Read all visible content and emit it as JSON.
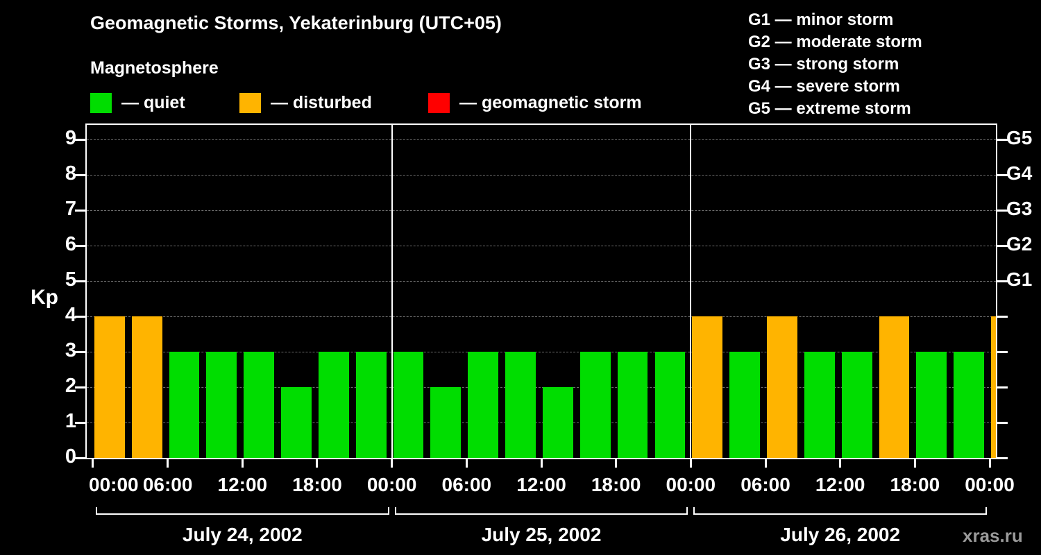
{
  "title": "Geomagnetic Storms, Yekaterinburg (UTC+05)",
  "subtitle": "Magnetosphere",
  "legend": [
    {
      "name": "quiet",
      "label": "— quiet",
      "color": "#00dd00"
    },
    {
      "name": "disturbed",
      "label": "— disturbed",
      "color": "#ffb400"
    },
    {
      "name": "storm",
      "label": "— geomagnetic storm",
      "color": "#ff0000"
    }
  ],
  "storm_scale": [
    {
      "label": "G1 — minor storm"
    },
    {
      "label": "G2 — moderate storm"
    },
    {
      "label": "G3 — strong storm"
    },
    {
      "label": "G4 — severe storm"
    },
    {
      "label": "G5 — extreme storm"
    }
  ],
  "watermark": "xras.ru",
  "chart_data": {
    "type": "bar",
    "title": "Geomagnetic Storms, Yekaterinburg (UTC+05)",
    "ylabel": "Kp",
    "ylim": [
      0,
      9
    ],
    "yticks": [
      0,
      1,
      2,
      3,
      4,
      5,
      6,
      7,
      8,
      9
    ],
    "right_axis": [
      {
        "value": 5,
        "label": "G1"
      },
      {
        "value": 6,
        "label": "G2"
      },
      {
        "value": 7,
        "label": "G3"
      },
      {
        "value": 8,
        "label": "G4"
      },
      {
        "value": 9,
        "label": "G5"
      }
    ],
    "x_tick_labels": [
      "00:00",
      "06:00",
      "12:00",
      "18:00",
      "00:00",
      "06:00",
      "12:00",
      "18:00",
      "00:00",
      "06:00",
      "12:00",
      "18:00",
      "00:00"
    ],
    "interval_hours": 3,
    "days": [
      {
        "date": "July 24, 2002",
        "kp": [
          4,
          4,
          3,
          3,
          3,
          2,
          3,
          3
        ]
      },
      {
        "date": "July 25, 2002",
        "kp": [
          3,
          2,
          3,
          3,
          2,
          3,
          3,
          3
        ]
      },
      {
        "date": "July 26, 2002",
        "kp": [
          4,
          3,
          4,
          3,
          3,
          4,
          3,
          3
        ]
      }
    ],
    "partial_next_interval_kp": 4,
    "color_rules": {
      "quiet_max": 3,
      "disturbed_max": 4
    },
    "colors": {
      "quiet": "#00dd00",
      "disturbed": "#ffb400",
      "storm": "#ff0000"
    },
    "grid": "dashed-horizontal",
    "legend_position": "top-left"
  }
}
